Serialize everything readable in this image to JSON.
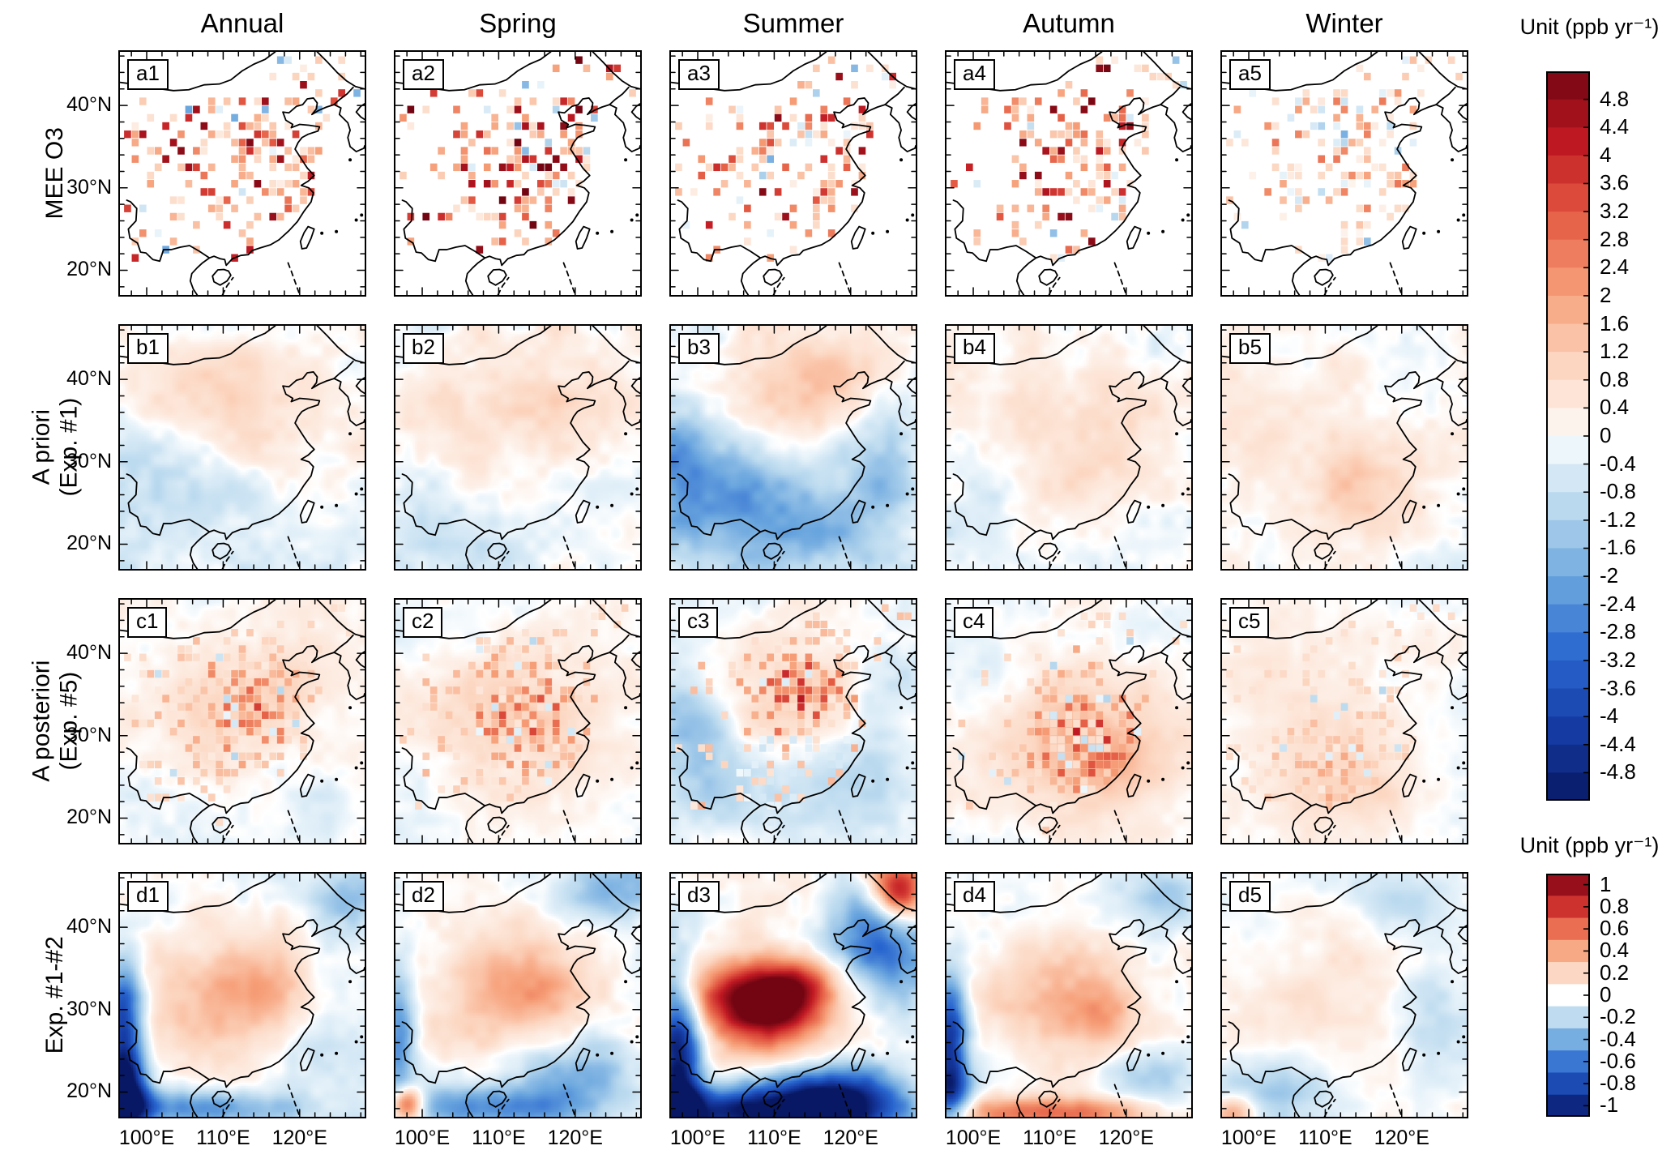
{
  "figure": {
    "columns": [
      "Annual",
      "Spring",
      "Summer",
      "Autumn",
      "Winter"
    ],
    "rows": [
      {
        "label": "MEE O3",
        "panels": [
          "a1",
          "a2",
          "a3",
          "a4",
          "a5"
        ]
      },
      {
        "label": "A priori\n(Exp. #1)",
        "panels": [
          "b1",
          "b2",
          "b3",
          "b4",
          "b5"
        ]
      },
      {
        "label": "A posteriori\n(Exp. #5)",
        "panels": [
          "c1",
          "c2",
          "c3",
          "c4",
          "c5"
        ]
      },
      {
        "label": "Exp. #1-#2",
        "panels": [
          "d1",
          "d2",
          "d3",
          "d4",
          "d5"
        ]
      }
    ],
    "y_ticks": [
      "40°N",
      "30°N",
      "20°N"
    ],
    "x_ticks": [
      "100°E",
      "110°E",
      "120°E"
    ],
    "colorbars": [
      {
        "title": "Unit (ppb yr⁻¹)",
        "ticks": [
          "4.8",
          "4.4",
          "4",
          "3.6",
          "3.2",
          "2.8",
          "2.4",
          "2",
          "1.6",
          "1.2",
          "0.8",
          "0.4",
          "0",
          "-0.4",
          "-0.8",
          "-1.2",
          "-1.6",
          "-2",
          "-2.4",
          "-2.8",
          "-3.2",
          "-3.6",
          "-4",
          "-4.4",
          "-4.8"
        ]
      },
      {
        "title": "Unit (ppb yr⁻¹)",
        "ticks": [
          "1",
          "0.8",
          "0.6",
          "0.4",
          "0.2",
          "0",
          "-0.2",
          "-0.4",
          "-0.6",
          "-0.8",
          "-1"
        ]
      }
    ]
  },
  "chart_data": {
    "type": "heatmap",
    "subtype": "multi-panel-map-grid",
    "title": "",
    "unit": "ppb yr⁻¹",
    "map_extent": {
      "lon_range": [
        97,
        128
      ],
      "lat_range": [
        17,
        46
      ],
      "region": "eastern China"
    },
    "grid": {
      "n_rows": 4,
      "n_cols": 5
    },
    "columns": [
      "Annual",
      "Spring",
      "Summer",
      "Autumn",
      "Winter"
    ],
    "rows": [
      "MEE O3",
      "A priori (Exp. #1)",
      "A posteriori (Exp. #5)",
      "Exp. #1-#2"
    ],
    "panel_labels": [
      [
        "a1",
        "a2",
        "a3",
        "a4",
        "a5"
      ],
      [
        "b1",
        "b2",
        "b3",
        "b4",
        "b5"
      ],
      [
        "c1",
        "c2",
        "c3",
        "c4",
        "c5"
      ],
      [
        "d1",
        "d2",
        "d3",
        "d4",
        "d5"
      ]
    ],
    "colorbar_top": {
      "applies_to_rows": [
        "a",
        "b",
        "c"
      ],
      "range": [
        -4.8,
        4.8
      ],
      "tick_step": 0.4,
      "palette": "diverging blue-white-red",
      "min_color": "#081864",
      "zero_color": "#ffffff",
      "max_color": "#730512"
    },
    "colorbar_bottom": {
      "applies_to_rows": [
        "d"
      ],
      "range": [
        -1,
        1
      ],
      "tick_step": 0.2,
      "palette": "diverging blue-white-red",
      "min_color": "#081864",
      "zero_color": "#ffffff",
      "max_color": "#730512"
    },
    "axis_ticks": {
      "lat": [
        40,
        30,
        20
      ],
      "lon": [
        100,
        110,
        120
      ]
    },
    "qualitative_values": {
      "row_a": "Observed MEE O3 trends on ~1-degree pixels over eastern China, mostly +1 to +5 ppb/yr (red to dark red), densest and strongest in Spring (a2); scattered weak negative pixels; Winter (a5) much weaker (0 to +2) with more light-blue pixels",
      "row_b": "Smooth a-priori model trends, weak magnitude (about -1.5 to +1.5); faint orange over northern China, faint blue over south/ocean; Summer (b3) shows pronounced negative trends (-1 to -3) over southwestern and southern China and adjacent ocean with positive patch over northeast",
      "row_c": "A-posteriori trends: smooth warm background plus strong positive pixel cluster (+2 to +4.5) over central-eastern China; strongest/darkest cluster in Summer (c3) around 110-118E, 32-40N and Autumn (c4) around 110-120E, 25-33N; Winter (c5) weak (0 to +1.5); Summer also shows blue areas west and southeast",
      "row_d": "Difference Exp.#1 - Exp.#2, small magnitude (about -1 to +1): pale orange over central China, blue bands along western edge and southern/ocean boundary; Summer (d3) strongest with dark-blue southwest corner and bottom strip, red patch (+0.6 to +1) over central China near 105-115E/28-34N and red northeast corner; d2 and d5 show small orange spots at bottom-left corner"
    }
  }
}
